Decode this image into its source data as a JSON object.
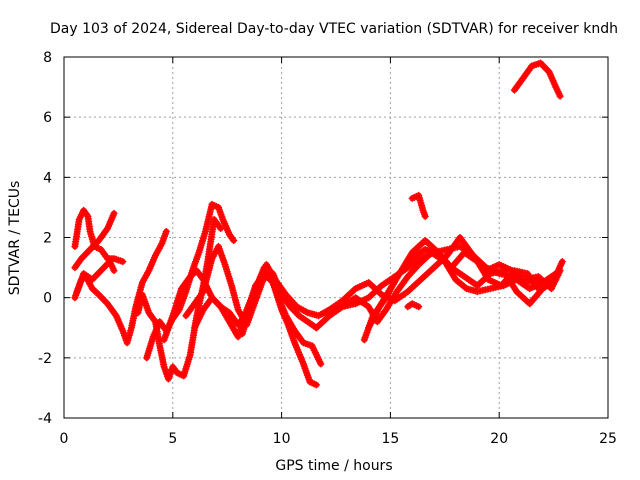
{
  "chart_data": {
    "type": "scatter",
    "title": "Day 103 of 2024, Sidereal Day-to-day VTEC variation (SDTVAR) for receiver kndh",
    "xlabel": "GPS time / hours",
    "ylabel": "SDTVAR / TECUs",
    "xlim": [
      0,
      25
    ],
    "ylim": [
      -4,
      8
    ],
    "xticks": [
      "0",
      "5",
      "10",
      "15",
      "20",
      "25"
    ],
    "yticks": [
      "-4",
      "-2",
      "0",
      "2",
      "4",
      "6",
      "8"
    ],
    "grid": true,
    "marker": "+",
    "series_color": "#ff0000",
    "series": [
      {
        "name": "trace-1",
        "points": [
          [
            0.5,
            1.7
          ],
          [
            0.7,
            2.6
          ],
          [
            0.9,
            2.9
          ],
          [
            1.1,
            2.7
          ],
          [
            1.2,
            2.2
          ],
          [
            1.4,
            1.7
          ],
          [
            1.7,
            1.6
          ],
          [
            2.0,
            1.3
          ],
          [
            2.3,
            1.3
          ],
          [
            2.7,
            1.2
          ]
        ]
      },
      {
        "name": "trace-2",
        "points": [
          [
            0.5,
            1.0
          ],
          [
            0.8,
            1.3
          ],
          [
            1.2,
            1.6
          ],
          [
            1.6,
            1.9
          ],
          [
            2.0,
            2.3
          ],
          [
            2.3,
            2.8
          ]
        ]
      },
      {
        "name": "trace-3",
        "points": [
          [
            0.5,
            0.0
          ],
          [
            0.8,
            0.6
          ],
          [
            1.0,
            0.7
          ],
          [
            1.3,
            0.3
          ],
          [
            1.6,
            0.1
          ],
          [
            2.0,
            -0.2
          ],
          [
            2.4,
            -0.6
          ],
          [
            2.7,
            -1.1
          ],
          [
            2.9,
            -1.5
          ],
          [
            3.1,
            -1.0
          ],
          [
            3.3,
            -0.3
          ],
          [
            3.6,
            0.5
          ],
          [
            3.9,
            0.9
          ],
          [
            4.2,
            1.4
          ],
          [
            4.5,
            1.8
          ],
          [
            4.7,
            2.2
          ]
        ]
      },
      {
        "name": "trace-4",
        "points": [
          [
            0.6,
            0.2
          ],
          [
            0.9,
            0.8
          ],
          [
            1.3,
            0.6
          ],
          [
            1.7,
            0.9
          ],
          [
            2.1,
            1.2
          ],
          [
            2.3,
            0.9
          ]
        ]
      },
      {
        "name": "trace-5",
        "points": [
          [
            3.4,
            -0.5
          ],
          [
            3.6,
            0.1
          ],
          [
            3.9,
            -0.5
          ],
          [
            4.2,
            -0.8
          ],
          [
            4.4,
            -1.6
          ],
          [
            4.6,
            -2.3
          ],
          [
            4.8,
            -2.7
          ],
          [
            5.0,
            -2.3
          ],
          [
            5.2,
            -2.5
          ],
          [
            5.5,
            -2.6
          ],
          [
            5.8,
            -1.9
          ],
          [
            6.1,
            -0.6
          ],
          [
            6.4,
            0.4
          ],
          [
            6.6,
            1.2
          ],
          [
            6.9,
            2.6
          ],
          [
            7.2,
            2.3
          ]
        ]
      },
      {
        "name": "trace-6",
        "points": [
          [
            3.8,
            -2.0
          ],
          [
            4.1,
            -1.3
          ],
          [
            4.4,
            -0.8
          ],
          [
            4.7,
            -1.1
          ],
          [
            5.0,
            -0.7
          ],
          [
            5.3,
            -0.4
          ],
          [
            5.6,
            0.2
          ],
          [
            5.9,
            0.9
          ],
          [
            6.2,
            1.5
          ],
          [
            6.5,
            2.2
          ],
          [
            6.8,
            3.1
          ],
          [
            7.1,
            3.0
          ],
          [
            7.3,
            2.6
          ],
          [
            7.6,
            2.1
          ],
          [
            7.8,
            1.9
          ]
        ]
      },
      {
        "name": "trace-7",
        "points": [
          [
            4.6,
            -1.4
          ],
          [
            5.0,
            -0.6
          ],
          [
            5.4,
            0.3
          ],
          [
            5.8,
            0.7
          ],
          [
            6.1,
            0.9
          ],
          [
            6.4,
            0.6
          ],
          [
            6.8,
            0.0
          ],
          [
            7.2,
            -0.3
          ],
          [
            7.6,
            -0.5
          ],
          [
            8.0,
            -0.9
          ],
          [
            8.4,
            -0.5
          ],
          [
            8.8,
            0.4
          ],
          [
            9.2,
            0.8
          ],
          [
            9.6,
            0.5
          ],
          [
            10.0,
            -0.4
          ],
          [
            10.3,
            -0.9
          ],
          [
            10.6,
            -1.5
          ],
          [
            11.0,
            -2.2
          ],
          [
            11.3,
            -2.8
          ],
          [
            11.6,
            -2.9
          ]
        ]
      },
      {
        "name": "trace-8",
        "points": [
          [
            5.6,
            -0.6
          ],
          [
            6.0,
            -0.2
          ],
          [
            6.4,
            0.2
          ],
          [
            6.8,
            1.3
          ],
          [
            7.1,
            1.7
          ],
          [
            7.4,
            1.1
          ],
          [
            7.7,
            0.4
          ],
          [
            8.0,
            -0.4
          ],
          [
            8.4,
            -0.9
          ],
          [
            8.8,
            -0.1
          ],
          [
            9.1,
            0.5
          ],
          [
            9.4,
            0.9
          ],
          [
            9.8,
            0.1
          ],
          [
            10.2,
            -0.6
          ],
          [
            10.6,
            -1.1
          ],
          [
            11.0,
            -1.5
          ],
          [
            11.4,
            -1.6
          ],
          [
            11.8,
            -2.2
          ]
        ]
      },
      {
        "name": "trace-9",
        "points": [
          [
            6.0,
            -1.0
          ],
          [
            6.4,
            -0.4
          ],
          [
            6.8,
            0.0
          ],
          [
            7.2,
            -0.3
          ],
          [
            7.6,
            -0.8
          ],
          [
            8.0,
            -1.3
          ],
          [
            8.4,
            -0.4
          ],
          [
            8.8,
            0.3
          ],
          [
            9.2,
            1.0
          ],
          [
            9.6,
            0.8
          ],
          [
            10.0,
            0.1
          ],
          [
            10.4,
            -0.3
          ],
          [
            10.8,
            -0.6
          ],
          [
            11.2,
            -0.8
          ],
          [
            11.6,
            -1.0
          ]
        ]
      },
      {
        "name": "trace-10",
        "points": [
          [
            8.2,
            -1.2
          ],
          [
            8.6,
            -0.2
          ],
          [
            9.0,
            0.5
          ],
          [
            9.3,
            1.1
          ],
          [
            9.7,
            0.6
          ],
          [
            10.2,
            0.1
          ],
          [
            10.7,
            -0.3
          ],
          [
            11.2,
            -0.5
          ],
          [
            11.7,
            -0.6
          ],
          [
            12.2,
            -0.4
          ],
          [
            12.8,
            -0.3
          ],
          [
            13.4,
            -0.2
          ],
          [
            14.0,
            0.0
          ],
          [
            14.6,
            0.4
          ],
          [
            15.2,
            0.7
          ],
          [
            15.8,
            1.0
          ],
          [
            16.4,
            1.3
          ],
          [
            17.0,
            1.5
          ],
          [
            17.6,
            1.6
          ],
          [
            18.2,
            1.7
          ],
          [
            18.8,
            1.4
          ],
          [
            19.4,
            1.0
          ],
          [
            20.0,
            0.8
          ],
          [
            20.6,
            0.7
          ],
          [
            21.2,
            0.5
          ],
          [
            21.8,
            0.6
          ],
          [
            22.4,
            0.4
          ],
          [
            22.9,
            1.2
          ]
        ]
      },
      {
        "name": "trace-11",
        "points": [
          [
            11.6,
            -1.0
          ],
          [
            12.2,
            -0.6
          ],
          [
            12.8,
            -0.3
          ],
          [
            13.4,
            0.0
          ],
          [
            14.0,
            -0.3
          ],
          [
            14.4,
            -0.8
          ],
          [
            14.8,
            -0.4
          ],
          [
            15.3,
            0.2
          ],
          [
            15.8,
            0.7
          ],
          [
            16.3,
            1.1
          ],
          [
            16.9,
            1.5
          ],
          [
            17.5,
            1.2
          ],
          [
            18.0,
            0.6
          ],
          [
            18.5,
            0.3
          ],
          [
            19.0,
            0.2
          ],
          [
            19.6,
            0.3
          ],
          [
            20.2,
            0.4
          ],
          [
            20.8,
            0.6
          ],
          [
            21.4,
            0.3
          ],
          [
            22.0,
            0.5
          ],
          [
            22.6,
            0.8
          ]
        ]
      },
      {
        "name": "trace-12",
        "points": [
          [
            12.0,
            -0.5
          ],
          [
            12.8,
            -0.1
          ],
          [
            13.4,
            0.3
          ],
          [
            14.0,
            0.5
          ],
          [
            14.6,
            0.1
          ],
          [
            15.2,
            -0.1
          ],
          [
            15.8,
            0.2
          ],
          [
            16.4,
            0.6
          ],
          [
            17.0,
            1.0
          ],
          [
            17.6,
            1.4
          ],
          [
            18.2,
            2.0
          ],
          [
            18.8,
            1.4
          ],
          [
            19.4,
            0.9
          ],
          [
            20.0,
            1.1
          ],
          [
            20.6,
            0.9
          ],
          [
            21.2,
            0.6
          ],
          [
            21.8,
            0.7
          ],
          [
            22.4,
            0.3
          ],
          [
            22.8,
            0.9
          ]
        ]
      },
      {
        "name": "trace-13",
        "points": [
          [
            13.8,
            -1.4
          ],
          [
            14.2,
            -0.6
          ],
          [
            14.8,
            0.0
          ],
          [
            15.4,
            0.8
          ],
          [
            16.0,
            1.3
          ],
          [
            16.6,
            1.6
          ],
          [
            17.2,
            1.4
          ],
          [
            17.8,
            1.0
          ],
          [
            18.4,
            0.7
          ],
          [
            19.0,
            0.4
          ],
          [
            19.6,
            0.8
          ],
          [
            20.2,
            0.9
          ],
          [
            20.8,
            0.2
          ],
          [
            21.4,
            -0.2
          ],
          [
            22.0,
            0.3
          ],
          [
            22.6,
            0.6
          ]
        ]
      },
      {
        "name": "trace-14",
        "points": [
          [
            14.0,
            -1.0
          ],
          [
            14.5,
            -0.3
          ],
          [
            15.0,
            0.3
          ],
          [
            15.5,
            0.9
          ],
          [
            16.0,
            1.5
          ],
          [
            16.6,
            1.9
          ],
          [
            17.2,
            1.5
          ],
          [
            17.8,
            1.0
          ],
          [
            18.4,
            1.5
          ],
          [
            19.0,
            1.2
          ],
          [
            19.5,
            0.6
          ],
          [
            20.1,
            0.4
          ],
          [
            20.7,
            0.9
          ],
          [
            21.3,
            0.8
          ],
          [
            21.8,
            0.3
          ]
        ]
      },
      {
        "name": "trace-15",
        "points": [
          [
            15.8,
            -0.3
          ],
          [
            16.0,
            -0.2
          ],
          [
            16.3,
            -0.3
          ]
        ]
      },
      {
        "name": "trace-16",
        "points": [
          [
            16.0,
            3.3
          ],
          [
            16.3,
            3.4
          ],
          [
            16.5,
            2.9
          ],
          [
            16.6,
            2.7
          ]
        ]
      },
      {
        "name": "trace-17",
        "points": [
          [
            20.7,
            6.9
          ],
          [
            21.1,
            7.3
          ],
          [
            21.5,
            7.7
          ],
          [
            21.9,
            7.8
          ],
          [
            22.3,
            7.5
          ],
          [
            22.6,
            7.0
          ],
          [
            22.8,
            6.7
          ]
        ]
      }
    ]
  }
}
